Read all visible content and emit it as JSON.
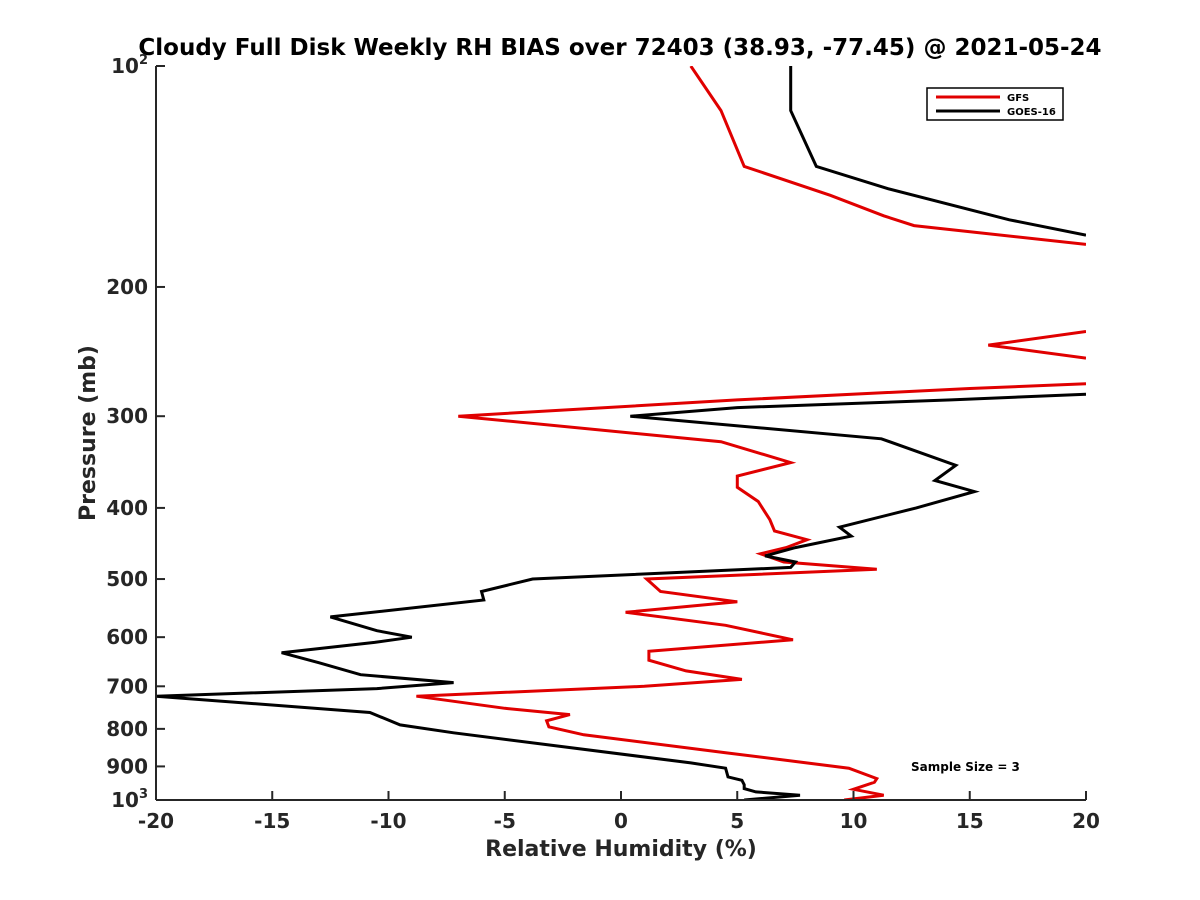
{
  "chart_data": {
    "type": "line",
    "title": "Cloudy Full Disk Weekly RH BIAS over 72403 (38.93, -77.45) @ 2021-05-24",
    "xlabel": "Relative Humidity (%)",
    "ylabel": "Pressure (mb)",
    "xlim": [
      -20,
      20
    ],
    "ylim": [
      100,
      1000
    ],
    "y_scale": "log",
    "y_reversed": true,
    "x_ticks": [
      "-20",
      "-15",
      "-10",
      "-5",
      "0",
      "5",
      "10",
      "15",
      "20"
    ],
    "y_ticks": [
      {
        "value": 100,
        "base": "10",
        "exp": "2"
      },
      {
        "value": 200,
        "label": "200"
      },
      {
        "value": 300,
        "label": "300"
      },
      {
        "value": 400,
        "label": "400"
      },
      {
        "value": 500,
        "label": "500"
      },
      {
        "value": 600,
        "label": "600"
      },
      {
        "value": 700,
        "label": "700"
      },
      {
        "value": 800,
        "label": "800"
      },
      {
        "value": 900,
        "label": "900"
      },
      {
        "value": 1000,
        "base": "10",
        "exp": "3"
      }
    ],
    "legend_position": "top-right",
    "annotation": "Sample Size = 3",
    "series": [
      {
        "name": "GFS",
        "color": "#e00000",
        "segments": [
          [
            [
              3.0,
              100
            ],
            [
              4.3,
              115
            ],
            [
              5.3,
              137
            ],
            [
              9.0,
              150
            ],
            [
              11.3,
              160
            ],
            [
              12.6,
              165
            ],
            [
              20,
              175
            ]
          ],
          [
            [
              20,
              230
            ],
            [
              15.8,
              240
            ],
            [
              20,
              250
            ]
          ],
          [
            [
              20,
              271
            ],
            [
              15,
              275
            ],
            [
              5,
              285
            ],
            [
              -7,
              300
            ],
            [
              4.3,
              325
            ],
            [
              7.3,
              347
            ],
            [
              5,
              362
            ],
            [
              5,
              375
            ],
            [
              5.9,
              392
            ],
            [
              6.4,
              415
            ],
            [
              6.6,
              430
            ],
            [
              8.0,
              442
            ],
            [
              7.1,
              453
            ],
            [
              6,
              462
            ],
            [
              7,
              474
            ],
            [
              11,
              485
            ],
            [
              1.1,
              500
            ],
            [
              1.7,
              520
            ],
            [
              5,
              537
            ],
            [
              0.2,
              555
            ],
            [
              4.5,
              578
            ],
            [
              7.4,
              605
            ],
            [
              1.2,
              627
            ],
            [
              1.2,
              645
            ],
            [
              2.8,
              667
            ],
            [
              5.2,
              685
            ],
            [
              1,
              700
            ],
            [
              -8.8,
              722
            ],
            [
              -5,
              750
            ],
            [
              -2.2,
              765
            ],
            [
              -3.2,
              780
            ],
            [
              -3.1,
              795
            ],
            [
              -1.6,
              815
            ],
            [
              4.5,
              862
            ],
            [
              9.8,
              905
            ],
            [
              11,
              935
            ],
            [
              10.9,
              946
            ],
            [
              10,
              967
            ],
            [
              11.3,
              985
            ],
            [
              9.6,
              1000
            ]
          ]
        ]
      },
      {
        "name": "GOES-16",
        "color": "#000000",
        "segments": [
          [
            [
              7.3,
              100
            ],
            [
              7.3,
              115
            ],
            [
              8.4,
              137
            ],
            [
              11.5,
              147
            ],
            [
              16.7,
              162
            ],
            [
              20,
              170
            ]
          ],
          [
            [
              20,
              280
            ],
            [
              14.2,
              285
            ],
            [
              5,
              292
            ],
            [
              0.4,
              300
            ],
            [
              11.2,
              322
            ],
            [
              14.4,
              350
            ],
            [
              13.5,
              367
            ],
            [
              15.2,
              380
            ],
            [
              12.7,
              400
            ],
            [
              9.4,
              425
            ],
            [
              9.9,
              437
            ],
            [
              7.5,
              453
            ],
            [
              6.2,
              465
            ],
            [
              7.5,
              474
            ],
            [
              7.3,
              482
            ],
            [
              -3.8,
              500
            ],
            [
              -6,
              520
            ],
            [
              -5.9,
              534
            ],
            [
              -12.5,
              563
            ],
            [
              -10.5,
              588
            ],
            [
              -9.0,
              600
            ],
            [
              -10.6,
              610
            ],
            [
              -14.6,
              630
            ],
            [
              -13,
              650
            ],
            [
              -11.2,
              675
            ],
            [
              -7.2,
              692
            ],
            [
              -10.5,
              705
            ],
            [
              -20,
              722
            ],
            [
              -10.8,
              760
            ],
            [
              -9.5,
              790
            ],
            [
              -7.2,
              810
            ],
            [
              3,
              890
            ],
            [
              4.5,
              905
            ],
            [
              4.6,
              930
            ],
            [
              5.2,
              940
            ],
            [
              5.3,
              953
            ],
            [
              5.3,
              965
            ],
            [
              5.8,
              975
            ],
            [
              7.7,
              985
            ],
            [
              5.3,
              1000
            ]
          ]
        ]
      }
    ]
  }
}
